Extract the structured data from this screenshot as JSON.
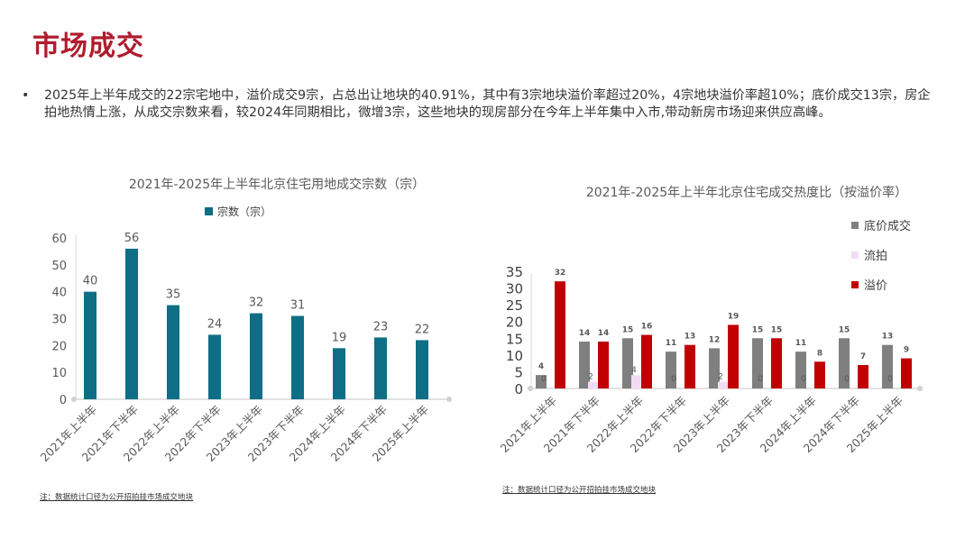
{
  "page": {
    "title": "市场成交",
    "bullet": "2025年上半年成交的22宗宅地中，溢价成交9宗，占总出让地块的40.91%，其中有3宗地块溢价率超过20%，4宗地块溢价率超10%；底价成交13宗，房企拍地热情上涨，从成交宗数来看，较2024年同期相比，微增3宗，这些地块的现房部分在今年上半年集中入市,带动新房市场迎来供应高峰。",
    "note_left": "注：数据统计口径为公开招拍挂市场成交地块",
    "note_right": "注：数据统计口径为公开招拍挂市场成交地块"
  },
  "chart_data": [
    {
      "type": "bar",
      "title": "2021年-2025年上半年北京住宅用地成交宗数（宗）",
      "categories": [
        "2021年上半年",
        "2021年下半年",
        "2022年上半年",
        "2022年下半年",
        "2023年上半年",
        "2023年下半年",
        "2024年上半年",
        "2024年下半年",
        "2025年上半年"
      ],
      "series": [
        {
          "name": "宗数（宗）",
          "values": [
            40,
            56,
            35,
            24,
            32,
            31,
            19,
            23,
            22
          ],
          "color": "#0e6e85"
        }
      ],
      "ylim": [
        0,
        60
      ],
      "yticks": [
        0,
        10,
        20,
        30,
        40,
        50,
        60
      ],
      "legend": "top",
      "grid": false
    },
    {
      "type": "bar",
      "title": "2021年-2025年上半年北京住宅成交热度比（按溢价率）",
      "categories": [
        "2021年上半年",
        "2021年下半年",
        "2022年上半年",
        "2022年下半年",
        "2023年上半年",
        "2023年下半年",
        "2024年上半年",
        "2024年下半年",
        "2025年上半年"
      ],
      "series": [
        {
          "name": "底价成交",
          "values": [
            4,
            14,
            15,
            11,
            12,
            15,
            11,
            15,
            13
          ],
          "color": "#7f7f7f"
        },
        {
          "name": "流拍",
          "values": [
            0,
            2,
            4,
            0,
            2,
            0,
            0,
            0,
            0
          ],
          "color": "#f3dcf3"
        },
        {
          "name": "溢价",
          "values": [
            32,
            14,
            16,
            13,
            19,
            15,
            8,
            7,
            9
          ],
          "color": "#c00000"
        }
      ],
      "ylim": [
        0,
        35
      ],
      "yticks": [
        0,
        5,
        10,
        15,
        20,
        25,
        30,
        35
      ],
      "legend": "right",
      "grid": false
    }
  ]
}
